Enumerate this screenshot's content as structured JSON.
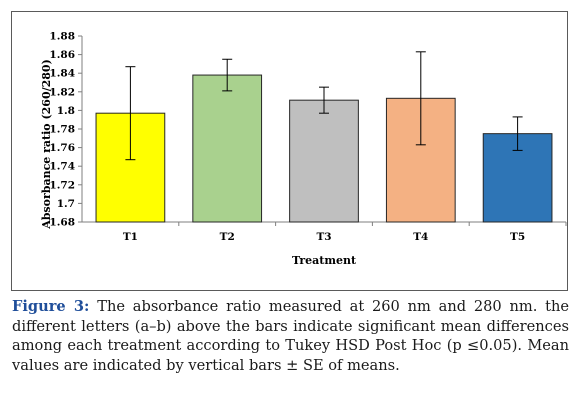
{
  "chart_data": {
    "type": "bar",
    "title": "",
    "xlabel": "Treatment",
    "ylabel": "Absorbance ratio (260/280)",
    "categories": [
      "T1",
      "T2",
      "T3",
      "T4",
      "T5"
    ],
    "values": [
      1.797,
      1.838,
      1.811,
      1.813,
      1.775
    ],
    "errors": [
      0.05,
      0.017,
      0.014,
      0.05,
      0.018
    ],
    "colors": [
      "#ffff00",
      "#a9d18e",
      "#bfbfbf",
      "#f4b183",
      "#2e75b6"
    ],
    "ylim": [
      1.68,
      1.88
    ],
    "yticks": [
      "1.68",
      "1.7",
      "1.72",
      "1.74",
      "1.76",
      "1.78",
      "1.8",
      "1.82",
      "1.84",
      "1.86",
      "1.88"
    ],
    "grid": false,
    "legend": "none"
  },
  "caption": {
    "label": "Figure 3:",
    "text": "The absorbance ratio measured at 260 nm and 280 nm. the different letters (a–b) above the bars indicate significant mean differences among each treatment according to Tukey HSD Post Hoc (p ≤0.05). Mean values are indicated by vertical bars ± SE of means."
  }
}
